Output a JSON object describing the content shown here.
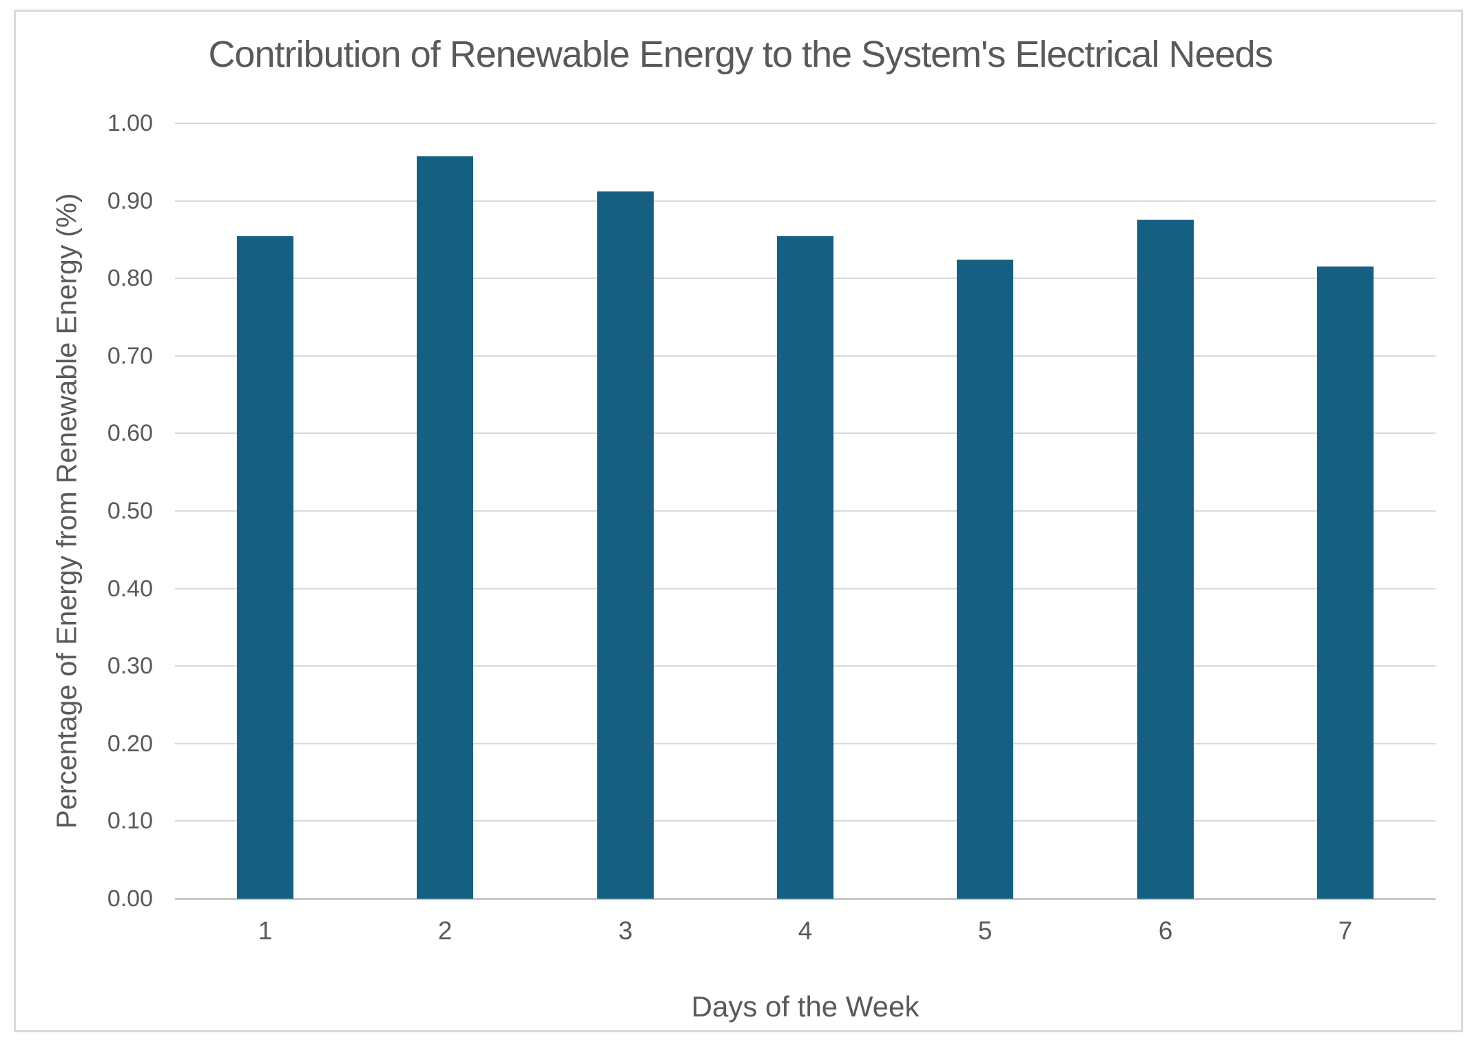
{
  "chart_data": {
    "type": "bar",
    "title": "Contribution of Renewable Energy to the System's Electrical Needs",
    "xlabel": "Days of the Week",
    "ylabel": "Percentage of Energy from Renewable Energy (%)",
    "categories": [
      "1",
      "2",
      "3",
      "4",
      "5",
      "6",
      "7"
    ],
    "values": [
      0.854,
      0.957,
      0.912,
      0.854,
      0.824,
      0.876,
      0.815
    ],
    "ylim": [
      0.0,
      1.0
    ],
    "ytick_step": 0.1,
    "ytick_decimals": 2,
    "grid": "horizontal-only",
    "legend": "none",
    "colors": {
      "bar": "#156082",
      "gridline": "#d9d9d9",
      "axis_line": "#c8c8c8",
      "text": "#595959",
      "frame_border": "#d9d9d9",
      "background": "#ffffff"
    }
  }
}
